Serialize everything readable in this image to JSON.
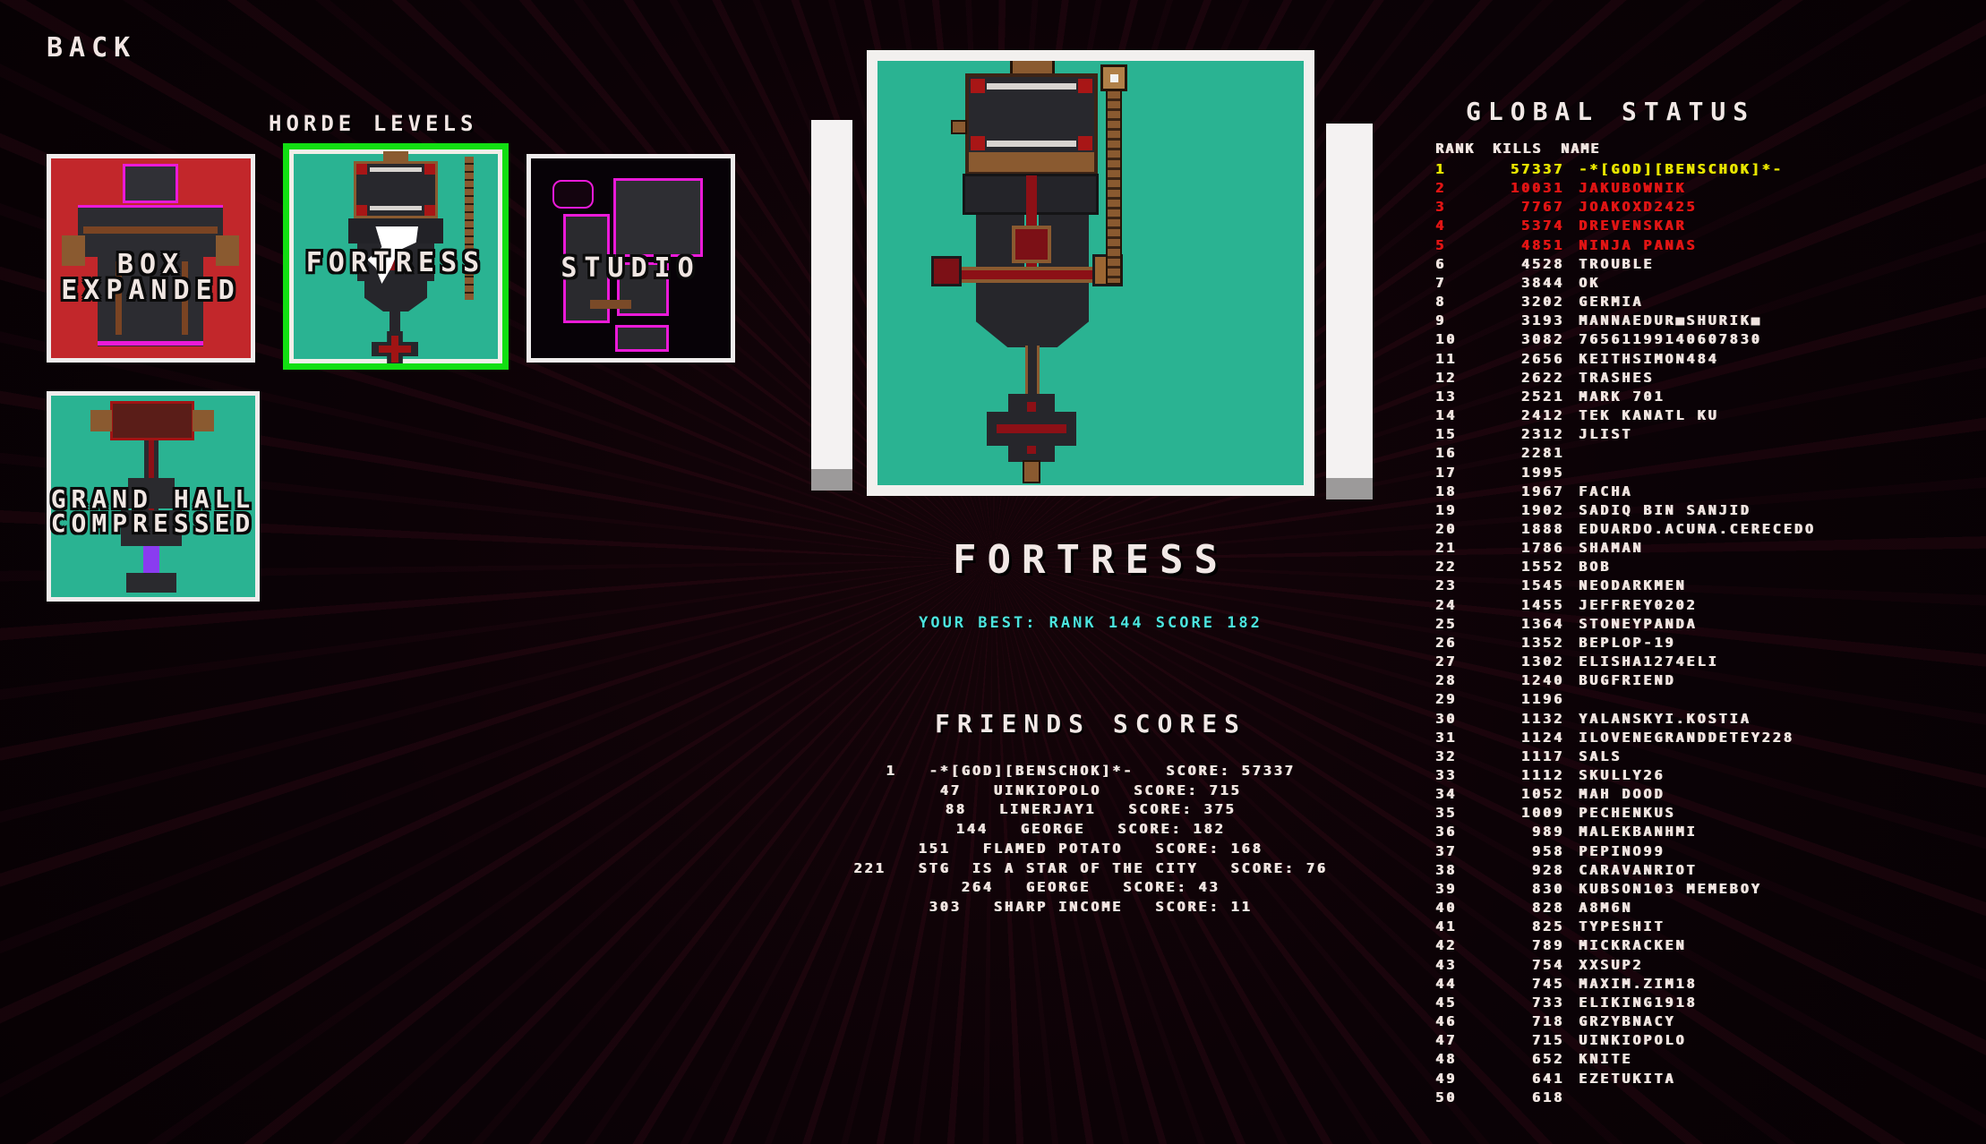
{
  "back_label": "BACK",
  "section_title": "HORDE LEVELS",
  "selected_level": "FORTRESS",
  "colors": {
    "accent_selected": "#12df12",
    "gold_rank": "#e8e400",
    "red_rank": "#e01414",
    "row_white": "#f0e4e0",
    "cyan_stat": "#4ce4de",
    "teal_level": "#2ab392",
    "red_level": "#c2272b"
  },
  "levels": [
    {
      "name": "BOX EXPANDED",
      "label_lines": [
        "BOX",
        "EXPANDED"
      ],
      "selected": false
    },
    {
      "name": "FORTRESS",
      "label_lines": [
        "FORTRESS"
      ],
      "selected": true
    },
    {
      "name": "STUDIO",
      "label_lines": [
        "STUDIO"
      ],
      "selected": false
    },
    {
      "name": "GRAND HALL COMPRESSED",
      "label_lines": [
        "GRAND HALL",
        "COMPRESSED"
      ],
      "selected": false
    }
  ],
  "preview": {
    "level_name": "FORTRESS",
    "your_best_text": "YOUR BEST: RANK 144 SCORE 182",
    "your_best_rank": 144,
    "your_best_score": 182
  },
  "friends": {
    "title": "FRIENDS SCORES",
    "score_label": "SCORE:",
    "rows": [
      {
        "rank": 1,
        "name": "-*[GOD][BENSCHOK]*-",
        "score": 57337
      },
      {
        "rank": 47,
        "name": "UINKIOPOLO",
        "score": 715
      },
      {
        "rank": 88,
        "name": "LINERJAY1",
        "score": 375
      },
      {
        "rank": 144,
        "name": "GEORGE",
        "score": 182
      },
      {
        "rank": 151,
        "name": "FLAMED POTATO",
        "score": 168
      },
      {
        "rank": 221,
        "name": "STG  IS A STAR OF THE CITY",
        "score": 76
      },
      {
        "rank": 264,
        "name": "GEORGE",
        "score": 43
      },
      {
        "rank": 303,
        "name": "SHARP INCOME",
        "score": 11
      }
    ]
  },
  "global": {
    "title": "GLOBAL STATUS",
    "columns": [
      "RANK",
      "KILLS",
      "NAME"
    ],
    "rows": [
      {
        "rank": 1,
        "kills": 57337,
        "name": "-*[GOD][BENSCHOK]*-",
        "color": "gold"
      },
      {
        "rank": 2,
        "kills": 10031,
        "name": "JAKUBOWNIK",
        "color": "red"
      },
      {
        "rank": 3,
        "kills": 7767,
        "name": "JOAKOXD2425",
        "color": "red"
      },
      {
        "rank": 4,
        "kills": 5374,
        "name": "DREVENSKAR",
        "color": "red"
      },
      {
        "rank": 5,
        "kills": 4851,
        "name": "NINJA PANAS",
        "color": "red"
      },
      {
        "rank": 6,
        "kills": 4528,
        "name": "TROUBLE"
      },
      {
        "rank": 7,
        "kills": 3844,
        "name": "OK"
      },
      {
        "rank": 8,
        "kills": 3202,
        "name": "GERMIA"
      },
      {
        "rank": 9,
        "kills": 3193,
        "name": "MANNAEDUR■SHURIK■"
      },
      {
        "rank": 10,
        "kills": 3082,
        "name": "76561199140607830"
      },
      {
        "rank": 11,
        "kills": 2656,
        "name": "KEITHSIMON484"
      },
      {
        "rank": 12,
        "kills": 2622,
        "name": "TRASHES"
      },
      {
        "rank": 13,
        "kills": 2521,
        "name": "MARK 701"
      },
      {
        "rank": 14,
        "kills": 2412,
        "name": "TEK KANATL KU"
      },
      {
        "rank": 15,
        "kills": 2312,
        "name": "JLIST"
      },
      {
        "rank": 16,
        "kills": 2281,
        "name": ""
      },
      {
        "rank": 17,
        "kills": 1995,
        "name": ""
      },
      {
        "rank": 18,
        "kills": 1967,
        "name": "FACHA"
      },
      {
        "rank": 19,
        "kills": 1902,
        "name": "SADIQ BIN SANJID"
      },
      {
        "rank": 20,
        "kills": 1888,
        "name": "EDUARDO.ACUNA.CERECEDO"
      },
      {
        "rank": 21,
        "kills": 1786,
        "name": "SHAMAN"
      },
      {
        "rank": 22,
        "kills": 1552,
        "name": "BOB"
      },
      {
        "rank": 23,
        "kills": 1545,
        "name": "NEODARKMEN"
      },
      {
        "rank": 24,
        "kills": 1455,
        "name": "JEFFREY0202"
      },
      {
        "rank": 25,
        "kills": 1364,
        "name": "STONEYPANDA"
      },
      {
        "rank": 26,
        "kills": 1352,
        "name": "BEPLOP-19"
      },
      {
        "rank": 27,
        "kills": 1302,
        "name": "ELISHA1274ELI"
      },
      {
        "rank": 28,
        "kills": 1240,
        "name": "BUGFRIEND"
      },
      {
        "rank": 29,
        "kills": 1196,
        "name": ""
      },
      {
        "rank": 30,
        "kills": 1132,
        "name": "YALANSKYI.KOSTIA"
      },
      {
        "rank": 31,
        "kills": 1124,
        "name": "ILOVENEGRANDDETEY228"
      },
      {
        "rank": 32,
        "kills": 1117,
        "name": "SALS"
      },
      {
        "rank": 33,
        "kills": 1112,
        "name": "SKULLY26"
      },
      {
        "rank": 34,
        "kills": 1052,
        "name": "MAH DOOD"
      },
      {
        "rank": 35,
        "kills": 1009,
        "name": "PECHENKUS"
      },
      {
        "rank": 36,
        "kills": 989,
        "name": "MALEKBANHMI"
      },
      {
        "rank": 37,
        "kills": 958,
        "name": "PEPINO99"
      },
      {
        "rank": 38,
        "kills": 928,
        "name": "CARAVANRIOT"
      },
      {
        "rank": 39,
        "kills": 830,
        "name": "KUBSON103 MEMEBOY"
      },
      {
        "rank": 40,
        "kills": 828,
        "name": "A8M6N"
      },
      {
        "rank": 41,
        "kills": 825,
        "name": "TYPESHIT"
      },
      {
        "rank": 42,
        "kills": 789,
        "name": "MICKRACKEN"
      },
      {
        "rank": 43,
        "kills": 754,
        "name": "XXSUP2"
      },
      {
        "rank": 44,
        "kills": 745,
        "name": "MAXIM.ZIM18"
      },
      {
        "rank": 45,
        "kills": 733,
        "name": "ELIKING1918"
      },
      {
        "rank": 46,
        "kills": 718,
        "name": "GRZYBNACY"
      },
      {
        "rank": 47,
        "kills": 715,
        "name": "UINKIOPOLO"
      },
      {
        "rank": 48,
        "kills": 652,
        "name": "KNITE"
      },
      {
        "rank": 49,
        "kills": 641,
        "name": "EZETUKITA"
      },
      {
        "rank": 50,
        "kills": 618,
        "name": ""
      }
    ]
  }
}
